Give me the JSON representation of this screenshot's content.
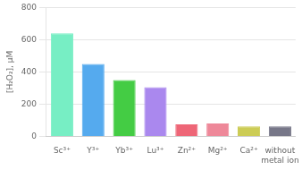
{
  "chart_data": {
    "type": "bar",
    "categories": [
      "Sc³⁺",
      "Y³⁺",
      "Yb³⁺",
      "Lu³⁺",
      "Zn²⁺",
      "Mg²⁺",
      "Ca²⁺",
      "without\nmetal ion"
    ],
    "values": [
      640,
      450,
      350,
      305,
      75,
      80,
      62,
      62
    ],
    "colors": [
      "#77eec4",
      "#55aaee",
      "#44cc44",
      "#aa88ee",
      "#ee6677",
      "#ee8899",
      "#cccc55",
      "#777788"
    ],
    "y_label": "[H₂O₂], μM",
    "ylim": [
      0,
      800
    ],
    "yticks": [
      0,
      200,
      400,
      600,
      800
    ],
    "grid": true
  }
}
